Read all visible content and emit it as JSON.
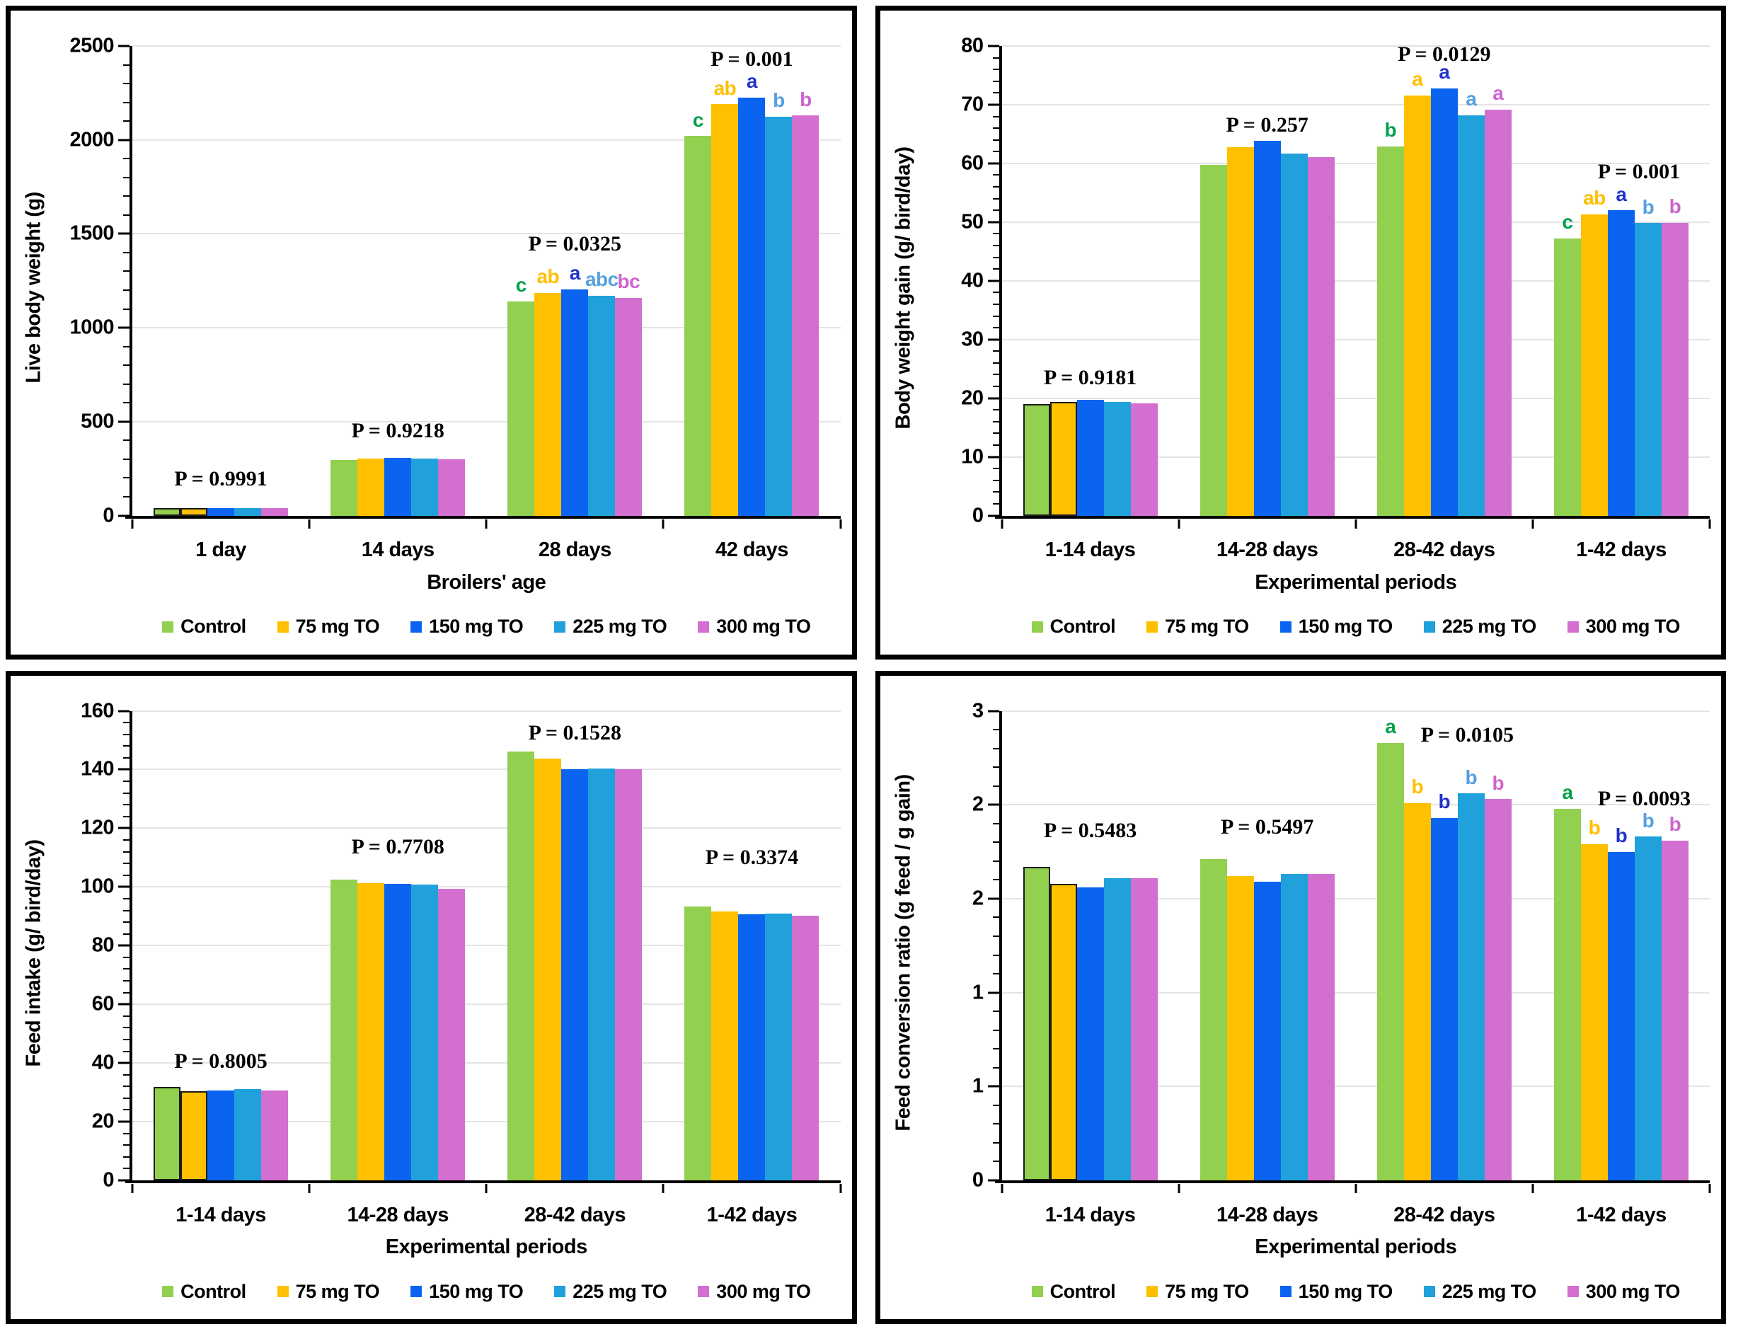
{
  "figure": {
    "description": "Four grouped bar charts of broiler performance with P-values and significance letters",
    "grid_color": "#E4E4E4"
  },
  "series_style": [
    {
      "name": "Control",
      "bar_color": "#92D050",
      "letter_color": "#00A14B"
    },
    {
      "name": "75 mg TO",
      "bar_color": "#FFC000",
      "letter_color": "#FFC000"
    },
    {
      "name": "150 mg TO",
      "bar_color": "#0A64F0",
      "letter_color": "#2232CC"
    },
    {
      "name": "225 mg TO",
      "bar_color": "#21A1DB",
      "letter_color": "#55A0E0"
    },
    {
      "name": "300 mg TO",
      "bar_color": "#D36FD0",
      "letter_color": "#CC66CC"
    }
  ],
  "chart_data": [
    {
      "type": "bar",
      "title": "",
      "ylabel": "Live body weight (g)",
      "xlabel": "Broilers' age",
      "ylim": [
        0,
        2500
      ],
      "ytick_labels": [
        "0",
        "500",
        "1000",
        "1500",
        "2000",
        "2500"
      ],
      "minor_divisions": 5,
      "grid": true,
      "legend_position": "bottom",
      "categories": [
        "1 day",
        "14 days",
        "28 days",
        "42 days"
      ],
      "series": [
        {
          "name": "Control",
          "values": [
            40,
            297,
            1140,
            2020
          ]
        },
        {
          "name": "75 mg TO",
          "values": [
            40,
            303,
            1185,
            2190
          ]
        },
        {
          "name": "150 mg TO",
          "values": [
            39,
            309,
            1205,
            2225
          ]
        },
        {
          "name": "225 mg TO",
          "values": [
            40,
            304,
            1170,
            2125
          ]
        },
        {
          "name": "300 mg TO",
          "values": [
            39,
            300,
            1160,
            2130
          ]
        }
      ],
      "p_labels": [
        {
          "text": "P = 0.9991",
          "category_index": 0,
          "y": 195,
          "dx": 0
        },
        {
          "text": "P = 0.9218",
          "category_index": 1,
          "y": 450,
          "dx": 0
        },
        {
          "text": "P = 0.0325",
          "category_index": 2,
          "y": 1445,
          "dx": 0
        },
        {
          "text": "P = 0.001",
          "category_index": 3,
          "y": 2430,
          "dx": 0
        }
      ],
      "sig_letters": [
        {
          "category_index": 2,
          "letters": [
            "c",
            "ab",
            "a",
            "abc",
            "bc"
          ]
        },
        {
          "category_index": 3,
          "letters": [
            "c",
            "ab",
            "a",
            "b",
            "b"
          ]
        }
      ]
    },
    {
      "type": "bar",
      "title": "",
      "ylabel": "Body weight gain (g/ bird/day)",
      "xlabel": "Experimental periods",
      "ylim": [
        0,
        80
      ],
      "ytick_labels": [
        "0",
        "10",
        "20",
        "30",
        "40",
        "50",
        "60",
        "70",
        "80"
      ],
      "minor_divisions": 5,
      "grid": true,
      "legend_position": "bottom",
      "categories": [
        "1-14 days",
        "14-28 days",
        "28-42 days",
        "1-42 days"
      ],
      "series": [
        {
          "name": "Control",
          "values": [
            19.0,
            59.8,
            62.9,
            47.2
          ]
        },
        {
          "name": "75 mg TO",
          "values": [
            19.4,
            62.7,
            71.6,
            51.3
          ]
        },
        {
          "name": "150 mg TO",
          "values": [
            19.7,
            63.8,
            72.8,
            52.0
          ]
        },
        {
          "name": "225 mg TO",
          "values": [
            19.4,
            61.7,
            68.2,
            49.8
          ]
        },
        {
          "name": "300 mg TO",
          "values": [
            19.1,
            61.1,
            69.2,
            49.9
          ]
        }
      ],
      "p_labels": [
        {
          "text": "P = 0.9181",
          "category_index": 0,
          "y": 23.5,
          "dx": 0
        },
        {
          "text": "P = 0.257",
          "category_index": 1,
          "y": 66.5,
          "dx": 0
        },
        {
          "text": "P = 0.0129",
          "category_index": 2,
          "y": 78.6,
          "dx": 0
        },
        {
          "text": "P = 0.001",
          "category_index": 3,
          "y": 58.5,
          "dx": 0.1
        }
      ],
      "sig_letters": [
        {
          "category_index": 2,
          "letters": [
            "b",
            "a",
            "a",
            "a",
            "a"
          ]
        },
        {
          "category_index": 3,
          "letters": [
            "c",
            "ab",
            "a",
            "b",
            "b"
          ]
        }
      ]
    },
    {
      "type": "bar",
      "title": "",
      "ylabel": "Feed intake (g/ bird/day)",
      "xlabel": "Experimental periods",
      "ylim": [
        0,
        160
      ],
      "ytick_labels": [
        "0",
        "20",
        "40",
        "60",
        "80",
        "100",
        "120",
        "140",
        "160"
      ],
      "minor_divisions": 5,
      "grid": true,
      "legend_position": "bottom",
      "categories": [
        "1-14 days",
        "14-28 days",
        "28-42 days",
        "1-42 days"
      ],
      "series": [
        {
          "name": "Control",
          "values": [
            31.8,
            102.4,
            146.1,
            93.4
          ]
        },
        {
          "name": "75 mg TO",
          "values": [
            30.4,
            101.2,
            143.8,
            91.7
          ]
        },
        {
          "name": "150 mg TO",
          "values": [
            30.6,
            101.1,
            140.1,
            90.7
          ]
        },
        {
          "name": "225 mg TO",
          "values": [
            31.1,
            100.7,
            140.4,
            90.9
          ]
        },
        {
          "name": "300 mg TO",
          "values": [
            30.7,
            99.4,
            140.1,
            90.2
          ]
        }
      ],
      "p_labels": [
        {
          "text": "P = 0.8005",
          "category_index": 0,
          "y": 40.5,
          "dx": 0
        },
        {
          "text": "P = 0.7708",
          "category_index": 1,
          "y": 113.5,
          "dx": 0
        },
        {
          "text": "P = 0.1528",
          "category_index": 2,
          "y": 152.5,
          "dx": 0
        },
        {
          "text": "P = 0.3374",
          "category_index": 3,
          "y": 110,
          "dx": 0
        }
      ],
      "sig_letters": []
    },
    {
      "type": "bar",
      "title": "",
      "ylabel": "Feed conversion ratio (g feed / g gain)",
      "xlabel": "Experimental periods",
      "ylim": [
        0,
        2.5
      ],
      "ytick_labels": [
        "0",
        "1",
        "1",
        "2",
        "2",
        "3"
      ],
      "minor_divisions": 5,
      "grid": true,
      "legend_position": "bottom",
      "categories": [
        "1-14 days",
        "14-28 days",
        "28-42 days",
        "1-42 days"
      ],
      "series": [
        {
          "name": "Control",
          "values": [
            1.67,
            1.71,
            2.33,
            1.98
          ]
        },
        {
          "name": "75 mg TO",
          "values": [
            1.58,
            1.62,
            2.01,
            1.79
          ]
        },
        {
          "name": "150 mg TO",
          "values": [
            1.56,
            1.59,
            1.93,
            1.75
          ]
        },
        {
          "name": "225 mg TO",
          "values": [
            1.61,
            1.63,
            2.06,
            1.83
          ]
        },
        {
          "name": "300 mg TO",
          "values": [
            1.61,
            1.63,
            2.03,
            1.81
          ]
        }
      ],
      "p_labels": [
        {
          "text": "P = 0.5483",
          "category_index": 0,
          "y": 1.86,
          "dx": 0
        },
        {
          "text": "P = 0.5497",
          "category_index": 1,
          "y": 1.88,
          "dx": 0
        },
        {
          "text": "P = 0.0105",
          "category_index": 2,
          "y": 2.37,
          "dx": 0.13
        },
        {
          "text": "P = 0.0093",
          "category_index": 3,
          "y": 2.03,
          "dx": 0.13
        }
      ],
      "sig_letters": [
        {
          "category_index": 2,
          "letters": [
            "a",
            "b",
            "b",
            "b",
            "b"
          ]
        },
        {
          "category_index": 3,
          "letters": [
            "a",
            "b",
            "b",
            "b",
            "b"
          ]
        }
      ]
    }
  ]
}
